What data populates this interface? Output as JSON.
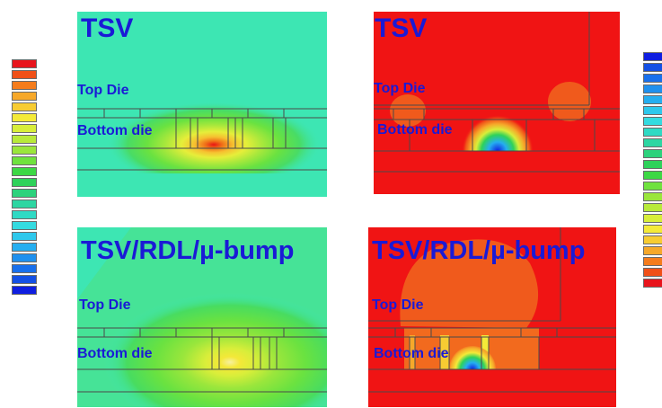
{
  "colorbar_left": {
    "colors": [
      "#e8141c",
      "#f05018",
      "#f57c1c",
      "#f6a82a",
      "#f7cc32",
      "#f4ea38",
      "#d8ee3a",
      "#b8ea3a",
      "#9ae63c",
      "#6fe23e",
      "#3cd844",
      "#2ed25a",
      "#2cd27c",
      "#2dd6a2",
      "#2fdac4",
      "#34dbe0",
      "#2ec8ec",
      "#25aef0",
      "#1f90ee",
      "#1870ec",
      "#1450e4",
      "#0f1ee0"
    ]
  },
  "colorbar_right": {
    "colors": [
      "#0f1ee0",
      "#1450e4",
      "#1870ec",
      "#1f90ee",
      "#25aef0",
      "#2ec8ec",
      "#34dbe0",
      "#2fdac4",
      "#2dd6a2",
      "#2cd27c",
      "#2ed25a",
      "#3cd844",
      "#6fe23e",
      "#9ae63c",
      "#b8ea3a",
      "#d8ee3a",
      "#f4ea38",
      "#f7cc32",
      "#f6a82a",
      "#f57c1c",
      "#f05018",
      "#e8141c"
    ]
  },
  "panels": {
    "top_left": {
      "title": "TSV",
      "top_die": "Top Die",
      "bottom_die": "Bottom die",
      "background": "#3de6b3"
    },
    "top_right": {
      "title": "TSV",
      "top_die": "Top Die",
      "bottom_die": "Bottom die",
      "background": "#f01414"
    },
    "bottom_left": {
      "title": "TSV/RDL/µ-bump",
      "top_die": "Top Die",
      "bottom_die": "Bottom die",
      "background": "#3de6b3"
    },
    "bottom_right": {
      "title": "TSV/RDL/µ-bump",
      "top_die": "Top Die",
      "bottom_die": "Bottom die",
      "background": "#f01414"
    }
  }
}
